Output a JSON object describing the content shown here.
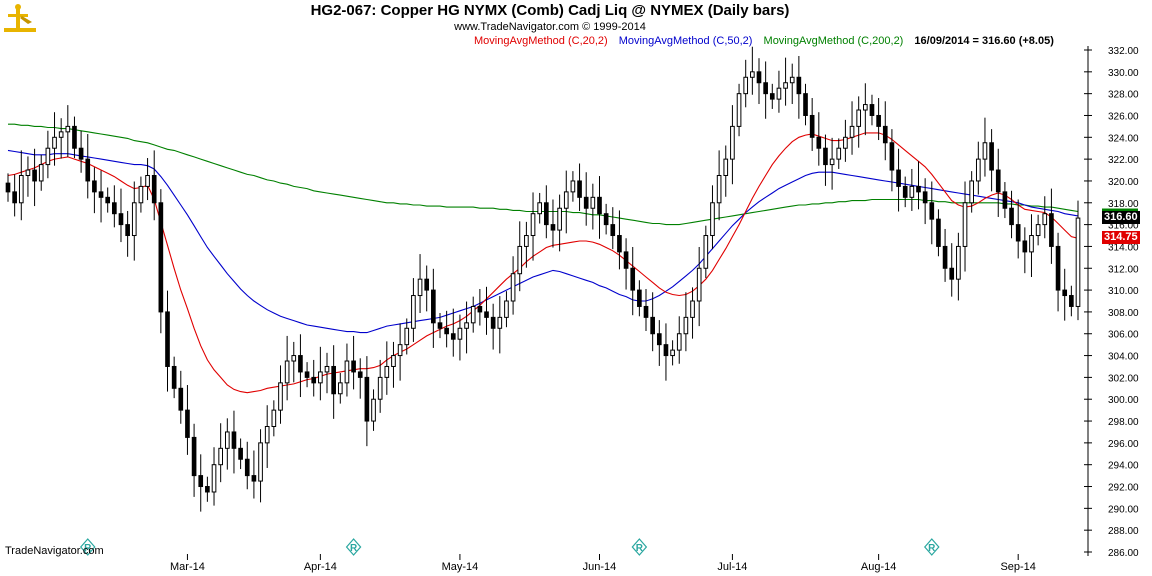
{
  "header": {
    "title": "HG2-067:  Copper HG NYMX (Comb) Cadj Liq @ NYMEX  (Daily bars)",
    "copyright": "www.TradeNavigator.com © 1999-2014"
  },
  "legend": {
    "ma20": "MovingAvgMethod (C,20,2)",
    "ma50": "MovingAvgMethod (C,50,2)",
    "ma200": "MovingAvgMethod (C,200,2)",
    "last": "16/09/2014 = 316.60 (+8.05)"
  },
  "brand": "TradeNavigator.com",
  "badges": {
    "close": "316.60",
    "ma20": "314.75"
  },
  "colors": {
    "ma20": "#e00000",
    "ma50": "#0000cc",
    "ma200": "#008000",
    "bars": "#000000",
    "roll_marker": "#2aa7a0"
  },
  "chart_data": {
    "type": "candlestick",
    "title": "HG2-067:  Copper HG NYMX (Comb) Cadj Liq @ NYMEX  (Daily bars)",
    "ylim": [
      286,
      332
    ],
    "y_ticks": [
      286,
      288,
      290,
      292,
      294,
      296,
      298,
      300,
      302,
      304,
      306,
      308,
      310,
      312,
      314,
      316,
      318,
      320,
      322,
      324,
      326,
      328,
      330,
      332
    ],
    "x_labels": [
      "Mar-14",
      "Apr-14",
      "May-14",
      "Jun-14",
      "Jul-14",
      "Aug-14",
      "Sep-14"
    ],
    "x_label_index": [
      27,
      47,
      68,
      89,
      109,
      131,
      152
    ],
    "roll_marker_index": [
      12,
      52,
      95,
      139
    ],
    "roll_marker_symbol": "R",
    "last_bar": {
      "date": "16/09/2014",
      "close": 316.6,
      "change": 8.05
    },
    "close": [
      319.0,
      318.0,
      320.5,
      321.0,
      320.0,
      321.5,
      323.0,
      324.0,
      324.5,
      325.0,
      323.0,
      322.0,
      320.0,
      319.0,
      318.5,
      318.0,
      317.0,
      316.0,
      315.0,
      318.0,
      319.5,
      320.5,
      318.0,
      308.0,
      303.0,
      301.0,
      299.0,
      296.5,
      293.0,
      292.0,
      291.5,
      294.0,
      295.5,
      297.0,
      295.5,
      294.5,
      293.0,
      292.5,
      296.0,
      297.5,
      299.0,
      301.5,
      303.5,
      304.0,
      302.5,
      302.0,
      301.5,
      302.5,
      303.0,
      300.5,
      301.5,
      303.5,
      302.5,
      302.0,
      298.0,
      300.0,
      302.0,
      303.0,
      304.0,
      305.0,
      306.5,
      309.5,
      311.0,
      310.0,
      307.0,
      306.5,
      306.0,
      305.5,
      306.5,
      307.0,
      308.5,
      308.0,
      307.5,
      306.5,
      307.5,
      309.0,
      311.5,
      314.0,
      315.0,
      317.0,
      318.0,
      316.0,
      315.5,
      317.5,
      319.0,
      320.0,
      318.5,
      317.5,
      318.5,
      317.0,
      316.0,
      315.0,
      313.5,
      312.0,
      310.0,
      308.5,
      307.5,
      306.0,
      305.0,
      304.0,
      304.5,
      306.0,
      307.5,
      309.0,
      312.0,
      315.0,
      318.0,
      320.5,
      322.0,
      325.0,
      328.0,
      329.5,
      330.0,
      329.0,
      328.0,
      327.5,
      328.5,
      329.0,
      329.5,
      328.0,
      326.0,
      324.0,
      323.0,
      321.5,
      322.0,
      323.0,
      324.0,
      325.0,
      326.5,
      327.0,
      326.0,
      325.0,
      323.5,
      321.0,
      319.5,
      318.5,
      319.5,
      319.0,
      318.0,
      316.5,
      314.0,
      312.0,
      311.0,
      314.0,
      318.0,
      320.0,
      322.0,
      323.5,
      321.0,
      319.0,
      317.5,
      316.0,
      314.5,
      313.5,
      315.0,
      316.0,
      317.0,
      314.0,
      310.0,
      309.5,
      308.5,
      316.6
    ],
    "series": [
      {
        "name": "MovingAvgMethod (C,20,2)",
        "values": [
          320.5,
          320.6,
          320.8,
          321.0,
          321.2,
          321.5,
          321.8,
          322.0,
          322.1,
          322.2,
          322.0,
          321.8,
          321.6,
          321.3,
          321.0,
          320.7,
          320.4,
          320.0,
          319.6,
          319.3,
          319.4,
          319.6,
          318.3,
          316.2,
          314.1,
          312.0,
          310.0,
          308.3,
          306.5,
          304.9,
          303.6,
          302.7,
          302.0,
          301.3,
          300.9,
          300.7,
          300.6,
          300.7,
          300.8,
          301.0,
          301.1,
          301.2,
          301.3,
          301.4,
          301.6,
          301.8,
          301.9,
          302.1,
          302.3,
          302.4,
          302.5,
          302.6,
          302.7,
          302.8,
          302.8,
          302.9,
          303.1,
          303.6,
          304.0,
          304.3,
          304.6,
          305.0,
          305.4,
          305.8,
          306.1,
          306.4,
          306.7,
          306.9,
          307.2,
          307.6,
          308.1,
          308.6,
          309.2,
          309.8,
          310.4,
          311.0,
          311.5,
          312.0,
          312.6,
          313.1,
          313.5,
          313.9,
          314.1,
          314.2,
          314.3,
          314.4,
          314.5,
          314.5,
          314.4,
          314.2,
          313.9,
          313.6,
          313.2,
          312.7,
          312.2,
          311.7,
          311.2,
          310.7,
          310.2,
          309.8,
          309.6,
          309.5,
          309.6,
          309.9,
          310.4,
          311.0,
          311.8,
          312.8,
          313.8,
          314.9,
          316.0,
          317.2,
          318.4,
          319.5,
          320.5,
          321.5,
          322.3,
          323.0,
          323.6,
          324.0,
          324.2,
          324.3,
          324.1,
          323.9,
          323.7,
          323.7,
          323.8,
          324.0,
          324.2,
          324.4,
          324.4,
          324.4,
          324.2,
          323.8,
          323.3,
          322.8,
          322.3,
          321.8,
          321.3,
          320.6,
          319.8,
          319.0,
          318.2,
          317.8,
          317.6,
          317.7,
          318.0,
          318.4,
          318.7,
          318.9,
          318.7,
          318.3,
          317.8,
          317.4,
          317.3,
          317.2,
          317.1,
          316.7,
          316.1,
          315.5,
          314.9,
          314.75
        ]
      },
      {
        "name": "MovingAvgMethod (C,50,2)",
        "values": [
          322.8,
          322.7,
          322.6,
          322.5,
          322.4,
          322.4,
          322.4,
          322.5,
          322.5,
          322.5,
          322.4,
          322.3,
          322.2,
          322.1,
          322.0,
          321.9,
          321.8,
          321.7,
          321.6,
          321.5,
          321.5,
          321.4,
          321.1,
          320.4,
          319.6,
          318.7,
          317.8,
          316.9,
          315.9,
          314.9,
          313.9,
          313.1,
          312.3,
          311.5,
          310.8,
          310.1,
          309.5,
          309.0,
          308.6,
          308.2,
          307.9,
          307.6,
          307.4,
          307.2,
          307.0,
          306.8,
          306.7,
          306.6,
          306.5,
          306.4,
          306.3,
          306.2,
          306.2,
          306.1,
          306.1,
          306.3,
          306.5,
          306.7,
          306.8,
          306.9,
          307.0,
          307.1,
          307.2,
          307.3,
          307.4,
          307.5,
          307.7,
          307.9,
          308.1,
          308.3,
          308.5,
          308.8,
          309.1,
          309.4,
          309.7,
          310.0,
          310.3,
          310.6,
          310.9,
          311.2,
          311.4,
          311.6,
          311.8,
          311.7,
          311.5,
          311.3,
          311.1,
          310.9,
          310.7,
          310.4,
          310.2,
          309.9,
          309.6,
          309.4,
          309.1,
          309.0,
          309.0,
          309.2,
          309.5,
          309.9,
          310.3,
          310.8,
          311.3,
          311.8,
          312.4,
          313.1,
          313.8,
          314.5,
          315.2,
          315.9,
          316.5,
          317.1,
          317.6,
          318.1,
          318.5,
          318.9,
          319.3,
          319.6,
          319.9,
          320.2,
          320.5,
          320.7,
          320.8,
          320.8,
          320.8,
          320.7,
          320.6,
          320.5,
          320.4,
          320.3,
          320.2,
          320.1,
          320.0,
          319.9,
          319.8,
          319.7,
          319.6,
          319.5,
          319.4,
          319.3,
          319.2,
          319.1,
          319.0,
          318.9,
          318.8,
          318.7,
          318.6,
          318.5,
          318.4,
          318.3,
          318.2,
          318.1,
          318.0,
          317.8,
          317.6,
          317.5,
          317.4,
          317.3,
          317.2,
          317.0,
          316.9,
          316.8
        ]
      },
      {
        "name": "MovingAvgMethod (C,200,2)",
        "values": [
          325.2,
          325.2,
          325.1,
          325.1,
          325.0,
          325.0,
          324.9,
          324.9,
          324.8,
          324.8,
          324.7,
          324.6,
          324.5,
          324.4,
          324.3,
          324.2,
          324.1,
          324.0,
          323.9,
          323.7,
          323.6,
          323.5,
          323.3,
          323.1,
          322.9,
          322.8,
          322.6,
          322.4,
          322.2,
          322.0,
          321.8,
          321.6,
          321.4,
          321.2,
          321.0,
          320.8,
          320.6,
          320.5,
          320.3,
          320.1,
          320.0,
          319.8,
          319.7,
          319.5,
          319.4,
          319.3,
          319.1,
          319.0,
          318.9,
          318.8,
          318.7,
          318.6,
          318.5,
          318.4,
          318.3,
          318.2,
          318.1,
          318.0,
          318.0,
          317.9,
          317.9,
          317.8,
          317.8,
          317.7,
          317.7,
          317.7,
          317.6,
          317.6,
          317.6,
          317.6,
          317.6,
          317.5,
          317.5,
          317.5,
          317.4,
          317.4,
          317.3,
          317.3,
          317.2,
          317.2,
          317.2,
          317.2,
          317.2,
          317.2,
          317.2,
          317.1,
          317.1,
          317.0,
          316.9,
          316.9,
          316.8,
          316.7,
          316.6,
          316.5,
          316.4,
          316.3,
          316.2,
          316.1,
          316.1,
          316.0,
          316.0,
          316.0,
          316.1,
          316.2,
          316.3,
          316.4,
          316.5,
          316.6,
          316.7,
          316.8,
          316.9,
          317.0,
          317.1,
          317.2,
          317.3,
          317.4,
          317.5,
          317.6,
          317.7,
          317.8,
          317.8,
          317.9,
          317.9,
          318.0,
          318.0,
          318.1,
          318.1,
          318.2,
          318.2,
          318.2,
          318.3,
          318.3,
          318.3,
          318.3,
          318.3,
          318.3,
          318.3,
          318.3,
          318.2,
          318.2,
          318.1,
          318.1,
          318.0,
          318.0,
          318.0,
          318.0,
          318.0,
          318.0,
          318.0,
          318.0,
          317.9,
          317.9,
          317.8,
          317.8,
          317.7,
          317.7,
          317.6,
          317.6,
          317.5,
          317.4,
          317.3,
          317.2
        ]
      }
    ]
  }
}
